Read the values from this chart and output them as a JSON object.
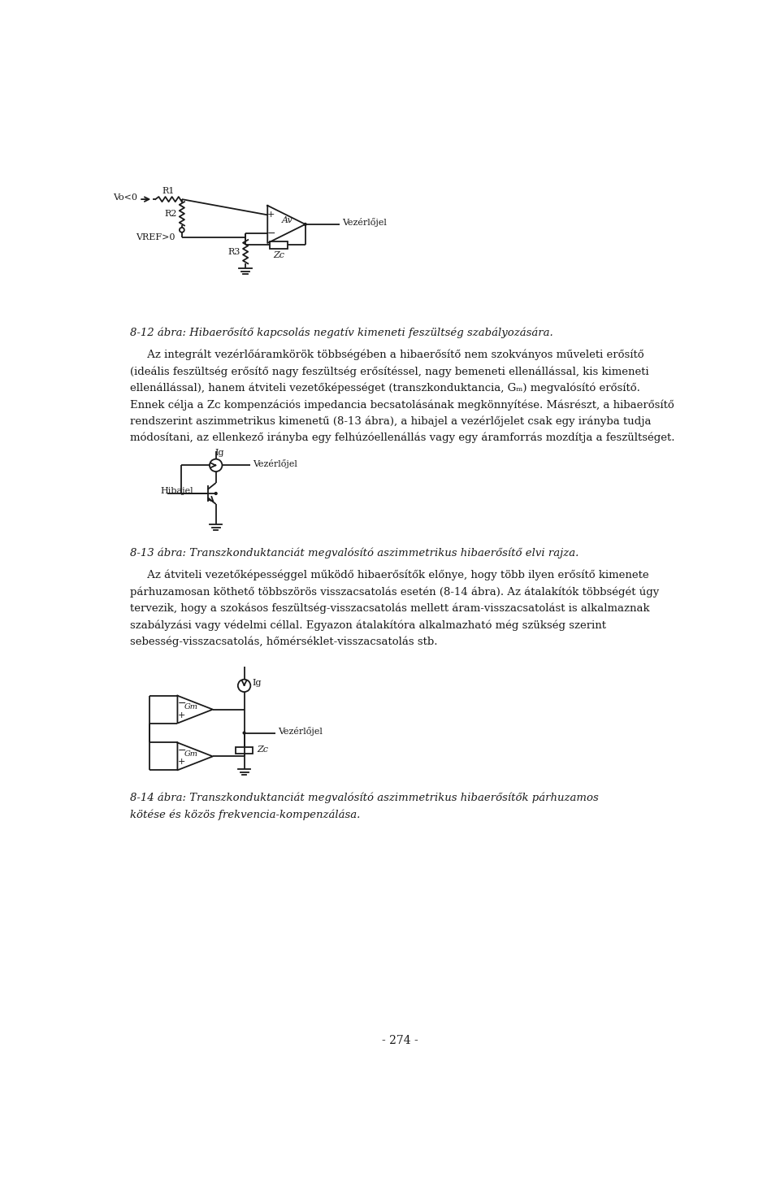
{
  "bg_color": "#ffffff",
  "text_color": "#1a1a1a",
  "line_color": "#1a1a1a",
  "page_width": 9.6,
  "page_height": 14.65,
  "caption1": "8-12 ábra: Hibaerősítő kapcsolás negatív kimeneti feszültség szabályozására.",
  "para1_lines": [
    "     Az integrált vezérlőáramkörök többségében a hibaerősítő nem szokványos műveleti erősítő",
    "(ideális feszültség erősítő nagy feszültség erősítéssel, nagy bemeneti ellenállással, kis kimeneti",
    "ellenállással), hanem átviteli vezetőképességet (transzkonduktancia, Gₘ) megvalósító erősítő.",
    "Ennek célja a Zᴄ kompenzációs impedancia becsatolásának megkönnyítése. Másrészt, a hibaerősítő",
    "rendszerint aszimmetrikus kimenetű (8-13 ábra), a hibajel a vezérlőjelet csak egy irányba tudja",
    "módosítani, az ellenkező irányba egy felhúzóellenállás vagy egy áramforrás mozdítja a feszültséget."
  ],
  "caption2": "8-13 ábra: Transzkonduktanciát megvalósító aszimmetrikus hibaerősítő elvi rajza.",
  "para2_lines": [
    "     Az átviteli vezetőképességgel működő hibaerősítők előnye, hogy több ilyen erősítő kimenete",
    "párhuzamosan köthető többszörös visszacsatolás esetén (8-14 ábra). Az átalakítók többségét úgy",
    "tervezik, hogy a szokásos feszültség-visszacsatolás mellett áram-visszacsatolást is alkalmaznak",
    "szabályzási vagy védelmi céllal. Egyazon átalakítóra alkalmazható még szükség szerint",
    "sebesség-visszacsatolás, hőmérséklet-visszacsatolás stb."
  ],
  "caption3_lines": [
    "8-14 ábra: Transzkonduktanciát megvalósító aszimmetrikus hibaerősítők párhuzamos",
    "kötése és közös frekvencia-kompenzálása."
  ],
  "page_num": "- 274 -"
}
